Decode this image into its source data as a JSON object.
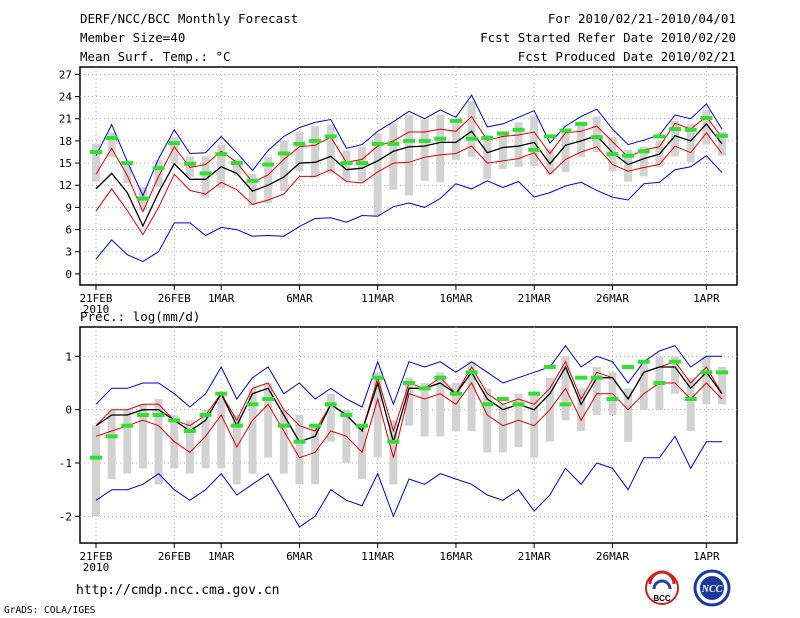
{
  "header": {
    "title": "DERF/NCC/BCC Monthly Forecast",
    "member": "Member Size=40",
    "variable": "Mean Surf. Temp.: °C",
    "period": "For 2010/02/21-2010/04/01",
    "started": "Fcst Started Refer Date 2010/02/20",
    "produced": "Fcst Produced Date 2010/02/21"
  },
  "footer": {
    "url": "http://cmdp.ncc.cma.gov.cn",
    "grads": "GrADS: COLA/IGES",
    "logo_bcc": "BCC",
    "logo_ncc": "NCC"
  },
  "colors": {
    "envelope": "#0000cc",
    "spread": "#dd0000",
    "mean": "#000000",
    "box": "#d2d2d2",
    "marker": "#33dd33"
  },
  "chart_data": [
    {
      "type": "line",
      "title": "Mean Surf. Temp.: °C",
      "ylim": [
        -1.5,
        28
      ],
      "yticks": [
        0,
        3,
        6,
        9,
        12,
        15,
        18,
        21,
        24,
        27
      ],
      "x_ticks": [
        {
          "i": 0,
          "label": "21FEB",
          "sub": "2010"
        },
        {
          "i": 5,
          "label": "26FEB"
        },
        {
          "i": 8,
          "label": "1MAR"
        },
        {
          "i": 13,
          "label": "6MAR"
        },
        {
          "i": 18,
          "label": "11MAR"
        },
        {
          "i": 23,
          "label": "16MAR"
        },
        {
          "i": 28,
          "label": "21MAR"
        },
        {
          "i": 33,
          "label": "26MAR"
        },
        {
          "i": 39,
          "label": "1APR"
        }
      ],
      "series": [
        {
          "name": "max",
          "values": [
            16.0,
            20.2,
            15.2,
            10.6,
            15.6,
            19.5,
            16.3,
            16.4,
            18.6,
            16.4,
            14.0,
            16.7,
            18.6,
            19.8,
            20.5,
            20.9,
            17.0,
            17.5,
            19.3,
            20.6,
            22.0,
            21.0,
            22.2,
            21.2,
            24.2,
            19.9,
            20.3,
            21.2,
            22.1,
            17.7,
            20.0,
            21.3,
            22.3,
            19.6,
            17.5,
            18.1,
            18.8,
            21.5,
            21.0,
            23.0,
            19.6
          ]
        },
        {
          "name": "upper",
          "values": [
            13.5,
            17.0,
            13.3,
            8.4,
            13.2,
            17.2,
            14.4,
            14.8,
            16.6,
            15.1,
            12.4,
            13.4,
            15.5,
            17.2,
            17.4,
            18.5,
            15.1,
            15.5,
            17.3,
            18.0,
            19.2,
            19.2,
            19.6,
            19.3,
            21.3,
            18.1,
            18.6,
            18.8,
            19.2,
            16.3,
            19.1,
            19.3,
            20.0,
            17.9,
            15.8,
            16.8,
            17.2,
            20.4,
            19.6,
            21.3,
            18.4
          ]
        },
        {
          "name": "mean",
          "values": [
            11.5,
            13.6,
            11.0,
            6.5,
            11.0,
            14.9,
            12.8,
            12.8,
            14.5,
            13.6,
            11.2,
            12.0,
            13.1,
            15.0,
            15.1,
            15.9,
            14.1,
            14.3,
            15.3,
            16.6,
            17.2,
            17.3,
            17.8,
            17.8,
            19.3,
            16.4,
            17.1,
            17.3,
            17.8,
            14.9,
            17.4,
            18.0,
            18.7,
            16.4,
            14.8,
            15.6,
            16.2,
            18.7,
            18.0,
            20.3,
            17.6
          ]
        },
        {
          "name": "lower",
          "values": [
            8.5,
            11.5,
            8.6,
            5.3,
            9.0,
            13.5,
            11.3,
            10.8,
            12.4,
            11.4,
            9.4,
            10.0,
            10.8,
            13.2,
            13.2,
            14.1,
            12.5,
            12.3,
            13.8,
            15.0,
            15.1,
            15.8,
            16.1,
            16.3,
            17.3,
            15.0,
            15.3,
            15.6,
            16.4,
            13.5,
            15.5,
            16.5,
            17.2,
            14.8,
            13.9,
            14.4,
            14.8,
            17.3,
            16.4,
            19.1,
            16.3
          ]
        },
        {
          "name": "min",
          "values": [
            2.0,
            4.6,
            2.6,
            1.7,
            3.0,
            6.9,
            6.9,
            5.2,
            6.3,
            6.0,
            5.1,
            5.2,
            5.1,
            6.4,
            7.5,
            7.6,
            7.0,
            7.9,
            7.8,
            9.1,
            9.6,
            9.0,
            10.2,
            12.2,
            11.5,
            12.6,
            11.7,
            12.5,
            10.4,
            11.0,
            11.9,
            12.4,
            11.3,
            10.4,
            10.0,
            12.2,
            12.4,
            14.1,
            14.5,
            16.0,
            13.7
          ]
        },
        {
          "name": "box_high",
          "values": [
            17.6,
            19.1,
            15.2,
            11.8,
            15.4,
            18.5,
            15.9,
            15.9,
            17.5,
            15.5,
            13.5,
            15.8,
            18.0,
            19.2,
            20.0,
            20.2,
            16.7,
            17.2,
            19.0,
            20.4,
            21.5,
            20.9,
            21.5,
            20.3,
            23.4,
            18.8,
            18.9,
            20.5,
            21.4,
            16.9,
            19.7,
            20.6,
            21.3,
            18.5,
            16.8,
            17.2,
            18.1,
            20.7,
            20.3,
            22.2,
            19.2
          ]
        },
        {
          "name": "box_low",
          "values": [
            12.5,
            15.8,
            12.3,
            8.6,
            11.8,
            14.9,
            13.1,
            10.3,
            11.6,
            13.3,
            9.3,
            9.6,
            11.2,
            13.9,
            13.0,
            13.6,
            12.6,
            12.5,
            7.9,
            11.4,
            10.6,
            12.6,
            12.4,
            15.4,
            15.8,
            12.8,
            14.2,
            14.5,
            14.6,
            13.5,
            13.8,
            15.8,
            16.5,
            13.9,
            12.5,
            13.2,
            14.5,
            15.9,
            15.1,
            17.5,
            16.0
          ]
        },
        {
          "name": "marker",
          "values": [
            16.5,
            18.4,
            15.0,
            10.2,
            14.3,
            17.7,
            14.9,
            13.6,
            16.2,
            15.0,
            12.6,
            14.8,
            16.3,
            17.6,
            18.0,
            18.6,
            15.0,
            15.0,
            17.6,
            17.6,
            18.0,
            18.0,
            18.3,
            20.7,
            18.3,
            18.4,
            19.0,
            19.5,
            16.8,
            18.6,
            19.4,
            20.3,
            18.5,
            16.2,
            16.0,
            16.6,
            18.6,
            19.6,
            19.5,
            21.1,
            18.7
          ]
        }
      ]
    },
    {
      "type": "line",
      "title": "Prec.: log(mm/d)",
      "ylim": [
        -2.5,
        1.55
      ],
      "yticks": [
        -2,
        -1,
        0,
        1
      ],
      "x_ticks": [
        {
          "i": 0,
          "label": "21FEB",
          "sub": "2010"
        },
        {
          "i": 5,
          "label": "26FEB"
        },
        {
          "i": 8,
          "label": "1MAR"
        },
        {
          "i": 13,
          "label": "6MAR"
        },
        {
          "i": 18,
          "label": "11MAR"
        },
        {
          "i": 23,
          "label": "16MAR"
        },
        {
          "i": 28,
          "label": "21MAR"
        },
        {
          "i": 33,
          "label": "26MAR"
        },
        {
          "i": 39,
          "label": "1APR"
        }
      ],
      "series": [
        {
          "name": "max",
          "values": [
            0.1,
            0.4,
            0.4,
            0.5,
            0.5,
            0.3,
            0.05,
            0.3,
            0.8,
            0.2,
            0.6,
            0.8,
            0.3,
            0.5,
            0.2,
            0.4,
            0.2,
            0.05,
            0.9,
            0.1,
            0.9,
            0.8,
            0.9,
            0.7,
            0.9,
            0.7,
            0.5,
            0.6,
            0.7,
            0.8,
            1.2,
            0.8,
            1.0,
            0.9,
            0.5,
            0.9,
            1.1,
            1.2,
            0.8,
            1.0,
            1.0
          ]
        },
        {
          "name": "upper",
          "values": [
            -0.3,
            0.0,
            0.0,
            0.1,
            0.1,
            -0.2,
            -0.3,
            -0.1,
            0.3,
            -0.2,
            0.4,
            0.5,
            0.0,
            -0.3,
            -0.4,
            0.1,
            -0.1,
            -0.4,
            0.6,
            -0.4,
            0.5,
            0.4,
            0.6,
            0.3,
            0.8,
            0.3,
            0.1,
            0.2,
            0.1,
            0.4,
            0.9,
            0.2,
            0.7,
            0.6,
            0.2,
            0.7,
            0.8,
            0.9,
            0.5,
            0.8,
            0.3
          ]
        },
        {
          "name": "mean",
          "values": [
            -0.3,
            -0.1,
            -0.1,
            0.0,
            0.0,
            -0.2,
            -0.4,
            -0.2,
            0.3,
            -0.3,
            0.3,
            0.4,
            -0.1,
            -0.6,
            -0.5,
            0.1,
            -0.1,
            -0.4,
            0.5,
            -0.6,
            0.4,
            0.4,
            0.5,
            0.3,
            0.7,
            0.2,
            0.0,
            0.1,
            0.0,
            0.3,
            0.8,
            0.1,
            0.6,
            0.6,
            0.2,
            0.7,
            0.8,
            0.8,
            0.4,
            0.7,
            0.3
          ]
        },
        {
          "name": "lower",
          "values": [
            -0.5,
            -0.4,
            -0.3,
            -0.2,
            -0.3,
            -0.6,
            -0.8,
            -0.5,
            -0.1,
            -0.7,
            -0.2,
            0.1,
            -0.4,
            -0.9,
            -0.8,
            -0.4,
            -0.5,
            -0.8,
            0.2,
            -0.9,
            0.3,
            0.2,
            0.3,
            0.1,
            0.5,
            -0.1,
            -0.3,
            -0.2,
            -0.3,
            0.0,
            0.4,
            -0.2,
            0.3,
            0.3,
            0.0,
            0.3,
            0.5,
            0.5,
            0.2,
            0.5,
            0.2
          ]
        },
        {
          "name": "min",
          "values": [
            -1.7,
            -1.5,
            -1.5,
            -1.4,
            -1.2,
            -1.5,
            -1.7,
            -1.5,
            -1.2,
            -1.6,
            -1.4,
            -1.2,
            -1.7,
            -2.2,
            -2.0,
            -1.5,
            -1.7,
            -1.8,
            -1.2,
            -2.0,
            -1.3,
            -1.4,
            -1.2,
            -1.3,
            -1.4,
            -1.6,
            -1.7,
            -1.5,
            -1.9,
            -1.6,
            -1.1,
            -1.4,
            -1.0,
            -1.1,
            -1.5,
            -0.9,
            -0.9,
            -0.5,
            -1.1,
            -0.6,
            -0.6
          ]
        },
        {
          "name": "box_high",
          "values": [
            -0.3,
            0.0,
            0.0,
            0.1,
            0.2,
            -0.1,
            -0.2,
            0.0,
            0.3,
            -0.1,
            0.4,
            0.5,
            0.0,
            -0.1,
            -0.3,
            0.3,
            0.0,
            -0.3,
            0.7,
            -0.2,
            0.6,
            0.5,
            0.7,
            0.5,
            0.9,
            0.4,
            0.1,
            0.3,
            0.3,
            0.6,
            1.0,
            0.4,
            0.8,
            0.7,
            0.4,
            0.9,
            1.0,
            1.0,
            0.6,
            1.0,
            0.8
          ]
        },
        {
          "name": "box_low",
          "values": [
            -2.0,
            -1.3,
            -1.2,
            -1.1,
            -1.4,
            -1.1,
            -1.2,
            -1.1,
            -1.1,
            -1.4,
            -1.2,
            -0.9,
            -1.2,
            -1.4,
            -1.4,
            -0.6,
            -1.0,
            -1.3,
            -0.9,
            -1.4,
            -0.3,
            -0.5,
            -0.5,
            -0.4,
            -0.4,
            -0.8,
            -0.8,
            -0.7,
            -0.9,
            -0.6,
            -0.2,
            -0.4,
            -0.1,
            -0.1,
            -0.6,
            0.0,
            0.0,
            0.3,
            -0.4,
            0.1,
            0.1
          ]
        },
        {
          "name": "marker",
          "values": [
            -0.9,
            -0.5,
            -0.3,
            -0.1,
            -0.1,
            -0.2,
            -0.4,
            -0.1,
            0.3,
            -0.3,
            0.1,
            0.2,
            -0.3,
            -0.6,
            -0.3,
            0.1,
            -0.1,
            -0.3,
            0.6,
            -0.6,
            0.5,
            0.4,
            0.6,
            0.3,
            0.7,
            0.1,
            0.2,
            0.1,
            0.3,
            0.8,
            0.1,
            0.6,
            0.6,
            0.2,
            0.8,
            0.9,
            0.5,
            0.9,
            0.2,
            0.7,
            0.7
          ]
        }
      ]
    }
  ]
}
